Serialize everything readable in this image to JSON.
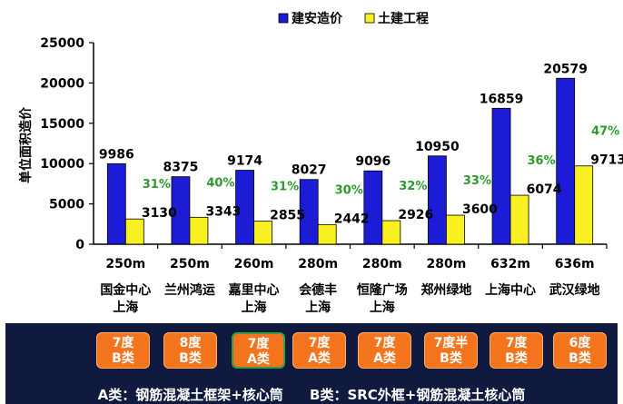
{
  "chart_data": {
    "type": "bar",
    "title": "",
    "xlabel": "",
    "ylabel": "单位面积造价",
    "ylim": [
      0,
      25000
    ],
    "yticks": [
      0,
      5000,
      10000,
      15000,
      20000,
      25000
    ],
    "legend_position": "top",
    "grid": false,
    "categories": [
      {
        "height": "250m",
        "name": [
          "国金中心",
          "上海"
        ]
      },
      {
        "height": "250m",
        "name": [
          "兰州鸿运"
        ]
      },
      {
        "height": "260m",
        "name": [
          "嘉里中心",
          "上海"
        ]
      },
      {
        "height": "280m",
        "name": [
          "会德丰",
          "上海"
        ]
      },
      {
        "height": "280m",
        "name": [
          "恒隆广场",
          "上海"
        ]
      },
      {
        "height": "280m",
        "name": [
          "郑州绿地"
        ]
      },
      {
        "height": "632m",
        "name": [
          "上海中心"
        ]
      },
      {
        "height": "636m",
        "name": [
          "武汉绿地"
        ]
      }
    ],
    "series": [
      {
        "name": "建安造价",
        "color": "#1c1cd6",
        "values": [
          9986,
          8375,
          9174,
          8027,
          9096,
          10950,
          16859,
          20579
        ]
      },
      {
        "name": "土建工程",
        "color": "#f8f020",
        "values": [
          3130,
          3343,
          2855,
          2442,
          2926,
          3600,
          6074,
          9713
        ]
      }
    ],
    "percent_labels": [
      "31%",
      "40%",
      "31%",
      "30%",
      "32%",
      "33%",
      "36%",
      "47%"
    ],
    "percent_color": "#2c9a2c"
  },
  "bottom": {
    "badges": [
      {
        "line1": "7度",
        "line2": "B类"
      },
      {
        "line1": "8度",
        "line2": "B类"
      },
      {
        "line1": "7度",
        "line2": "A类"
      },
      {
        "line1": "7度",
        "line2": "A类"
      },
      {
        "line1": "7度",
        "line2": "A类"
      },
      {
        "line1": "7度半",
        "line2": "B类"
      },
      {
        "line1": "7度",
        "line2": "B类"
      },
      {
        "line1": "6度",
        "line2": "B类"
      }
    ],
    "note_a": "A类：钢筋混凝土框架+核心筒",
    "note_b": "B类：SRC外框+钢筋混凝土核心筒"
  }
}
